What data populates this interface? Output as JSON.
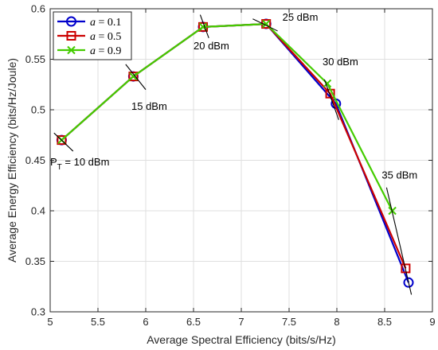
{
  "chart_data": {
    "type": "line",
    "xlabel": "Average Spectral Efficiency (bits/s/Hz)",
    "ylabel": "Average Energy Efficiency (bits/Hz/Joule)",
    "xlim": [
      5,
      9
    ],
    "ylim": [
      0.3,
      0.6
    ],
    "xticks": [
      5,
      5.5,
      6,
      6.5,
      7,
      7.5,
      8,
      8.5,
      9
    ],
    "yticks": [
      0.3,
      0.35,
      0.4,
      0.45,
      0.5,
      0.55,
      0.6
    ],
    "xtick_labels": [
      "5",
      "5.5",
      "6",
      "6.5",
      "7",
      "7.5",
      "8",
      "8.5",
      "9"
    ],
    "ytick_labels": [
      "0.3",
      "0.35",
      "0.4",
      "0.45",
      "0.5",
      "0.55",
      "0.6"
    ],
    "grid": true,
    "legend_position": "top-left",
    "series": [
      {
        "name": "a = 0.1",
        "legend_symbol": "a",
        "legend_value": " = 0.1",
        "color": "#0000cc",
        "marker": "circle",
        "x": [
          5.12,
          5.87,
          6.6,
          7.26,
          7.99,
          8.75
        ],
        "y": [
          0.47,
          0.533,
          0.582,
          0.585,
          0.506,
          0.329
        ]
      },
      {
        "name": "a = 0.5",
        "legend_symbol": "a",
        "legend_value": " = 0.5",
        "color": "#cc0000",
        "marker": "square",
        "x": [
          5.12,
          5.87,
          6.6,
          7.26,
          7.93,
          8.72
        ],
        "y": [
          0.47,
          0.533,
          0.582,
          0.585,
          0.516,
          0.343
        ]
      },
      {
        "name": "a = 0.9",
        "legend_symbol": "a",
        "legend_value": " = 0.9",
        "color": "#44cc00",
        "marker": "x",
        "x": [
          5.12,
          5.87,
          6.6,
          7.26,
          7.9,
          8.58
        ],
        "y": [
          0.47,
          0.533,
          0.582,
          0.585,
          0.526,
          0.4
        ]
      }
    ],
    "annotations": [
      {
        "text_main": "P",
        "text_sub": "T",
        "text_rest": " = 10 dBm",
        "x": 5.0,
        "y": 0.445,
        "tick_x": [
          5.04,
          5.24
        ],
        "tick_y": [
          0.477,
          0.459
        ]
      },
      {
        "text_main": "15 dBm",
        "text_sub": "",
        "text_rest": "",
        "x": 5.85,
        "y": 0.5,
        "tick_x": [
          5.79,
          6.0
        ],
        "tick_y": [
          0.545,
          0.52
        ]
      },
      {
        "text_main": "20 dBm",
        "text_sub": "",
        "text_rest": "",
        "x": 6.5,
        "y": 0.56,
        "tick_x": [
          6.57,
          6.66
        ],
        "tick_y": [
          0.594,
          0.571
        ]
      },
      {
        "text_main": "25 dBm",
        "text_sub": "",
        "text_rest": "",
        "x": 7.43,
        "y": 0.588,
        "tick_x": [
          7.12,
          7.38
        ],
        "tick_y": [
          0.59,
          0.578
        ]
      },
      {
        "text_main": "30 dBm",
        "text_sub": "",
        "text_rest": "",
        "x": 7.85,
        "y": 0.544,
        "tick_x": [
          7.87,
          8.02
        ],
        "tick_y": [
          0.53,
          0.49
        ]
      },
      {
        "text_main": "35 dBm",
        "text_sub": "",
        "text_rest": "",
        "x": 8.47,
        "y": 0.432,
        "tick_x": [
          8.52,
          8.78
        ],
        "tick_y": [
          0.423,
          0.317
        ]
      }
    ]
  }
}
